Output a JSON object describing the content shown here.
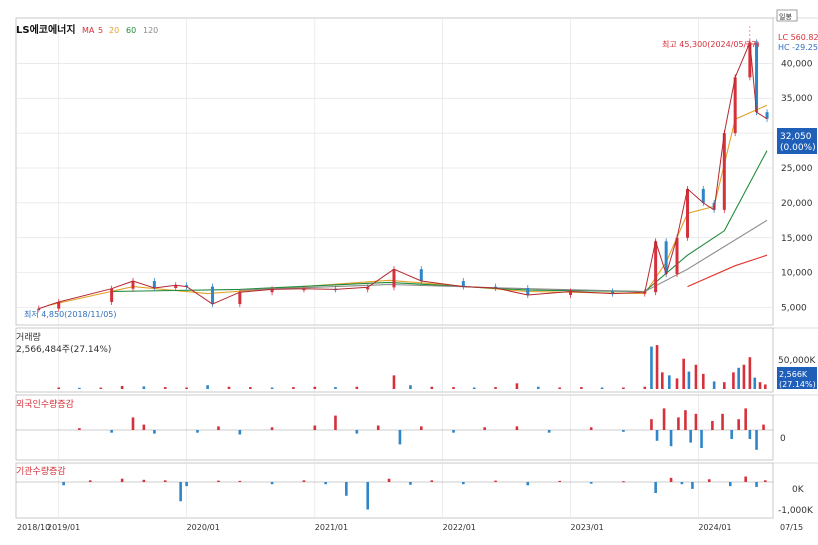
{
  "chart_data": {
    "type": "candlestick",
    "title": "LS에코에너지",
    "ma_legend": {
      "prefix": "MA",
      "periods": [
        "5",
        "20",
        "60",
        "120"
      ],
      "colors": [
        "#e0312d",
        "#e0a32a",
        "#1e8b3a",
        "#8a8a8a"
      ]
    },
    "price_axis": {
      "ticks": [
        "5,000",
        "10,000",
        "15,000",
        "20,000",
        "25,000",
        "30,000",
        "35,000",
        "40,000"
      ],
      "tick_values": [
        5000,
        10000,
        15000,
        20000,
        25000,
        30000,
        35000,
        40000
      ],
      "ylim": [
        2500,
        46500
      ]
    },
    "x_axis": {
      "labels": [
        "2018/10",
        "2019/01",
        "2020/01",
        "2021/01",
        "2022/01",
        "2023/01",
        "2024/01",
        "07/15"
      ],
      "dates": [
        "2018-10-01",
        "2019-01-01",
        "2020-01-01",
        "2021-01-01",
        "2022-01-01",
        "2023-01-01",
        "2024-01-01",
        "2024-07-15"
      ],
      "range": [
        "2018-09-01",
        "2024-08-01"
      ]
    },
    "annotations": {
      "high": "최고 45,300(2024/05/27)",
      "high_value": 45300,
      "high_date": "2024-05-27",
      "low": "최저 4,850(2018/11/05)",
      "low_value": 4850,
      "low_date": "2018-11-05"
    },
    "right_badges": {
      "top": "일봉",
      "lc": "LC 560.82%",
      "hc": "HC -29.25%",
      "price": "32,050",
      "change": "(0.00%)"
    },
    "price_series": [
      {
        "date": "2018-11-05",
        "close": 4850
      },
      {
        "date": "2019-01-01",
        "close": 5800
      },
      {
        "date": "2019-06-01",
        "close": 7700
      },
      {
        "date": "2019-08-01",
        "close": 8800
      },
      {
        "date": "2019-10-01",
        "close": 7800
      },
      {
        "date": "2019-12-01",
        "close": 8200
      },
      {
        "date": "2020-01-01",
        "close": 8000
      },
      {
        "date": "2020-03-15",
        "close": 5500
      },
      {
        "date": "2020-06-01",
        "close": 7200
      },
      {
        "date": "2020-09-01",
        "close": 7600
      },
      {
        "date": "2020-12-01",
        "close": 7700
      },
      {
        "date": "2021-03-01",
        "close": 7600
      },
      {
        "date": "2021-06-01",
        "close": 7900
      },
      {
        "date": "2021-08-15",
        "close": 10500
      },
      {
        "date": "2021-11-01",
        "close": 8800
      },
      {
        "date": "2022-03-01",
        "close": 8000
      },
      {
        "date": "2022-06-01",
        "close": 7800
      },
      {
        "date": "2022-09-01",
        "close": 6800
      },
      {
        "date": "2023-01-01",
        "close": 7300
      },
      {
        "date": "2023-05-01",
        "close": 7000
      },
      {
        "date": "2023-08-01",
        "close": 7200
      },
      {
        "date": "2023-09-01",
        "close": 14500
      },
      {
        "date": "2023-10-01",
        "close": 9800
      },
      {
        "date": "2023-11-01",
        "close": 15000
      },
      {
        "date": "2023-12-01",
        "close": 22000
      },
      {
        "date": "2024-01-15",
        "close": 20000
      },
      {
        "date": "2024-02-15",
        "close": 19000
      },
      {
        "date": "2024-03-15",
        "close": 30000
      },
      {
        "date": "2024-04-15",
        "close": 38000
      },
      {
        "date": "2024-05-27",
        "close": 43000
      },
      {
        "date": "2024-06-15",
        "close": 33000
      },
      {
        "date": "2024-07-15",
        "close": 32050
      }
    ],
    "ma_series": [
      {
        "name": "20",
        "values": [
          {
            "date": "2018-12-01",
            "close": 5300
          },
          {
            "date": "2019-08-01",
            "close": 8000
          },
          {
            "date": "2020-03-01",
            "close": 7000
          },
          {
            "date": "2021-08-01",
            "close": 8900
          },
          {
            "date": "2022-09-01",
            "close": 7300
          },
          {
            "date": "2023-08-01",
            "close": 7000
          },
          {
            "date": "2023-10-01",
            "close": 11500
          },
          {
            "date": "2023-12-01",
            "close": 18500
          },
          {
            "date": "2024-02-15",
            "close": 19500
          },
          {
            "date": "2024-04-15",
            "close": 32000
          },
          {
            "date": "2024-07-15",
            "close": 34000
          }
        ]
      },
      {
        "name": "60",
        "values": [
          {
            "date": "2019-06-01",
            "close": 7300
          },
          {
            "date": "2020-06-01",
            "close": 7600
          },
          {
            "date": "2021-08-01",
            "close": 8600
          },
          {
            "date": "2022-09-01",
            "close": 7500
          },
          {
            "date": "2023-08-01",
            "close": 7300
          },
          {
            "date": "2023-12-01",
            "close": 12500
          },
          {
            "date": "2024-03-15",
            "close": 16000
          },
          {
            "date": "2024-07-15",
            "close": 27500
          }
        ]
      },
      {
        "name": "120",
        "values": [
          {
            "date": "2020-06-01",
            "close": 7500
          },
          {
            "date": "2021-08-01",
            "close": 8300
          },
          {
            "date": "2022-09-01",
            "close": 7700
          },
          {
            "date": "2023-08-01",
            "close": 7300
          },
          {
            "date": "2023-12-01",
            "close": 10500
          },
          {
            "date": "2024-07-15",
            "close": 17500
          }
        ]
      },
      {
        "name": "5",
        "values": [
          {
            "date": "2023-12-01",
            "close": 8000
          },
          {
            "date": "2024-04-15",
            "close": 11000
          },
          {
            "date": "2024-07-15",
            "close": 12500
          }
        ]
      }
    ],
    "volume_panel": {
      "title": "거래량",
      "value": "2,566,484주(27.14%)",
      "axis_tick": "50,000K",
      "axis_tick_value": 50000,
      "badge_value": "2,566K",
      "badge_change": "(27.14%)",
      "ylim": [
        0,
        70000
      ],
      "bars": [
        {
          "date": "2019-01-01",
          "value": 2000
        },
        {
          "date": "2019-03-01",
          "value": 1500
        },
        {
          "date": "2019-05-01",
          "value": 1800
        },
        {
          "date": "2019-07-01",
          "value": 4000
        },
        {
          "date": "2019-09-01",
          "value": 3500
        },
        {
          "date": "2019-11-01",
          "value": 2500
        },
        {
          "date": "2020-01-01",
          "value": 2000
        },
        {
          "date": "2020-03-01",
          "value": 5000
        },
        {
          "date": "2020-05-01",
          "value": 3000
        },
        {
          "date": "2020-07-01",
          "value": 2500
        },
        {
          "date": "2020-09-01",
          "value": 2000
        },
        {
          "date": "2020-11-01",
          "value": 2500
        },
        {
          "date": "2021-01-01",
          "value": 3000
        },
        {
          "date": "2021-03-01",
          "value": 2500
        },
        {
          "date": "2021-05-01",
          "value": 3000
        },
        {
          "date": "2021-08-15",
          "value": 18000
        },
        {
          "date": "2021-10-01",
          "value": 5000
        },
        {
          "date": "2021-12-01",
          "value": 3000
        },
        {
          "date": "2022-02-01",
          "value": 2500
        },
        {
          "date": "2022-04-01",
          "value": 2000
        },
        {
          "date": "2022-06-01",
          "value": 2500
        },
        {
          "date": "2022-08-01",
          "value": 7500
        },
        {
          "date": "2022-10-01",
          "value": 3000
        },
        {
          "date": "2022-12-01",
          "value": 2000
        },
        {
          "date": "2023-02-01",
          "value": 2500
        },
        {
          "date": "2023-04-01",
          "value": 2000
        },
        {
          "date": "2023-06-01",
          "value": 2000
        },
        {
          "date": "2023-08-01",
          "value": 3000
        },
        {
          "date": "2023-08-20",
          "value": 56000
        },
        {
          "date": "2023-09-05",
          "value": 58000
        },
        {
          "date": "2023-09-20",
          "value": 22000
        },
        {
          "date": "2023-10-10",
          "value": 18000
        },
        {
          "date": "2023-11-01",
          "value": 14000
        },
        {
          "date": "2023-11-20",
          "value": 40000
        },
        {
          "date": "2023-12-05",
          "value": 23000
        },
        {
          "date": "2023-12-25",
          "value": 32000
        },
        {
          "date": "2024-01-15",
          "value": 20000
        },
        {
          "date": "2024-02-15",
          "value": 10000
        },
        {
          "date": "2024-03-15",
          "value": 9000
        },
        {
          "date": "2024-04-10",
          "value": 22000
        },
        {
          "date": "2024-04-25",
          "value": 28000
        },
        {
          "date": "2024-05-10",
          "value": 32000
        },
        {
          "date": "2024-05-27",
          "value": 42000
        },
        {
          "date": "2024-06-10",
          "value": 15000
        },
        {
          "date": "2024-06-25",
          "value": 9000
        },
        {
          "date": "2024-07-10",
          "value": 6000
        }
      ]
    },
    "foreign_panel": {
      "title": "외국인수량증감",
      "axis_tick": "0",
      "ylim": [
        -30,
        30
      ],
      "bars": [
        {
          "date": "2019-03-01",
          "value": 2
        },
        {
          "date": "2019-06-01",
          "value": -3
        },
        {
          "date": "2019-08-01",
          "value": 14
        },
        {
          "date": "2019-09-01",
          "value": 6
        },
        {
          "date": "2019-10-01",
          "value": -4
        },
        {
          "date": "2020-02-01",
          "value": -3
        },
        {
          "date": "2020-04-01",
          "value": 4
        },
        {
          "date": "2020-06-01",
          "value": -5
        },
        {
          "date": "2020-09-01",
          "value": 3
        },
        {
          "date": "2021-01-01",
          "value": 5
        },
        {
          "date": "2021-03-01",
          "value": 16
        },
        {
          "date": "2021-05-01",
          "value": -4
        },
        {
          "date": "2021-07-01",
          "value": 5
        },
        {
          "date": "2021-09-01",
          "value": -16
        },
        {
          "date": "2021-11-01",
          "value": 4
        },
        {
          "date": "2022-02-01",
          "value": -3
        },
        {
          "date": "2022-05-01",
          "value": 3
        },
        {
          "date": "2022-08-01",
          "value": 4
        },
        {
          "date": "2022-11-01",
          "value": -3
        },
        {
          "date": "2023-03-01",
          "value": 3
        },
        {
          "date": "2023-06-01",
          "value": -2
        },
        {
          "date": "2023-08-20",
          "value": 12
        },
        {
          "date": "2023-09-05",
          "value": -12
        },
        {
          "date": "2023-09-25",
          "value": 24
        },
        {
          "date": "2023-10-15",
          "value": -18
        },
        {
          "date": "2023-11-05",
          "value": 14
        },
        {
          "date": "2023-11-25",
          "value": 22
        },
        {
          "date": "2023-12-10",
          "value": -14
        },
        {
          "date": "2023-12-25",
          "value": 18
        },
        {
          "date": "2024-01-10",
          "value": -20
        },
        {
          "date": "2024-02-10",
          "value": 10
        },
        {
          "date": "2024-03-10",
          "value": 18
        },
        {
          "date": "2024-04-05",
          "value": -10
        },
        {
          "date": "2024-04-25",
          "value": 12
        },
        {
          "date": "2024-05-15",
          "value": 24
        },
        {
          "date": "2024-05-27",
          "value": -10
        },
        {
          "date": "2024-06-15",
          "value": -22
        },
        {
          "date": "2024-07-05",
          "value": 6
        }
      ]
    },
    "institution_panel": {
      "title": "기관수량증감",
      "axis_ticks": [
        "0K",
        "-1,000K"
      ],
      "axis_tick_values": [
        0,
        -1000
      ],
      "ylim": [
        -1200,
        400
      ],
      "bars": [
        {
          "date": "2019-01-15",
          "value": -120
        },
        {
          "date": "2019-04-01",
          "value": 60
        },
        {
          "date": "2019-07-01",
          "value": 120
        },
        {
          "date": "2019-09-01",
          "value": 80
        },
        {
          "date": "2019-11-01",
          "value": 60
        },
        {
          "date": "2020-01-01",
          "value": -150
        },
        {
          "date": "2019-12-15",
          "value": -700
        },
        {
          "date": "2020-04-01",
          "value": 50
        },
        {
          "date": "2020-06-01",
          "value": 40
        },
        {
          "date": "2020-09-01",
          "value": -80
        },
        {
          "date": "2020-12-01",
          "value": 60
        },
        {
          "date": "2021-02-01",
          "value": -80
        },
        {
          "date": "2021-04-01",
          "value": -500
        },
        {
          "date": "2021-06-01",
          "value": -1000
        },
        {
          "date": "2021-08-01",
          "value": 120
        },
        {
          "date": "2021-10-01",
          "value": -100
        },
        {
          "date": "2021-12-01",
          "value": 60
        },
        {
          "date": "2022-03-01",
          "value": -80
        },
        {
          "date": "2022-06-01",
          "value": 50
        },
        {
          "date": "2022-09-01",
          "value": -120
        },
        {
          "date": "2022-12-01",
          "value": 40
        },
        {
          "date": "2023-03-01",
          "value": -60
        },
        {
          "date": "2023-06-01",
          "value": 30
        },
        {
          "date": "2023-09-01",
          "value": -400
        },
        {
          "date": "2023-10-15",
          "value": 150
        },
        {
          "date": "2023-11-15",
          "value": -80
        },
        {
          "date": "2023-12-15",
          "value": -250
        },
        {
          "date": "2024-02-01",
          "value": 100
        },
        {
          "date": "2024-04-01",
          "value": -150
        },
        {
          "date": "2024-05-15",
          "value": 200
        },
        {
          "date": "2024-06-15",
          "value": -180
        },
        {
          "date": "2024-07-10",
          "value": 60
        }
      ]
    },
    "colors": {
      "up": "#d6303a",
      "down": "#2e86c9",
      "panel_title": "#d6303a",
      "badge_bg": "#1f5fb8",
      "grid": "#e4e4e4"
    }
  }
}
